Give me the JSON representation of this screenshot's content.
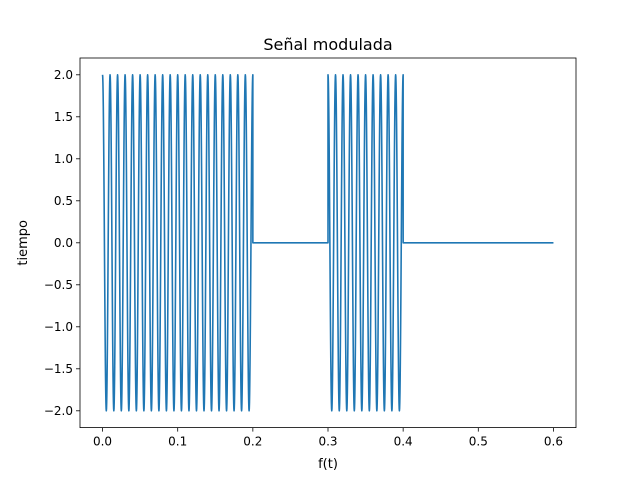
{
  "chart_data": {
    "type": "line",
    "title": "Señal modulada",
    "xlabel": "f(t)",
    "ylabel": "tiempo",
    "xlim": [
      -0.03,
      0.63
    ],
    "ylim": [
      -2.2,
      2.2
    ],
    "x_ticks": [
      0.0,
      0.1,
      0.2,
      0.3,
      0.4,
      0.5,
      0.6
    ],
    "x_tick_labels": [
      "0.0",
      "0.1",
      "0.2",
      "0.3",
      "0.4",
      "0.5",
      "0.6"
    ],
    "y_ticks": [
      -2.0,
      -1.5,
      -1.0,
      -0.5,
      0.0,
      0.5,
      1.0,
      1.5,
      2.0
    ],
    "y_tick_labels": [
      "−2.0",
      "−1.5",
      "−1.0",
      "−0.5",
      "0.0",
      "0.5",
      "1.0",
      "1.5",
      "2.0"
    ],
    "grid": false,
    "series": [
      {
        "color": "#1f77b4",
        "amplitude": 2.0,
        "carrier_period": 0.01,
        "segments": [
          {
            "x_start": 0.0,
            "x_end": 0.2,
            "state": "on"
          },
          {
            "x_start": 0.2,
            "x_end": 0.3,
            "state": "off"
          },
          {
            "x_start": 0.3,
            "x_end": 0.4,
            "state": "on"
          },
          {
            "x_start": 0.4,
            "x_end": 0.6,
            "state": "off"
          }
        ]
      }
    ]
  }
}
